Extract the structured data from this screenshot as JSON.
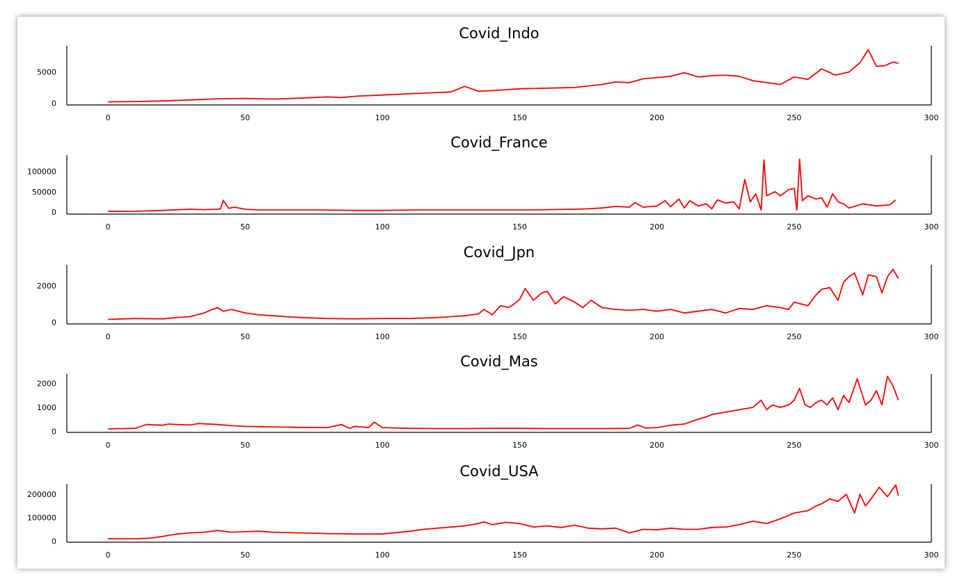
{
  "line_color": "#ff0000",
  "chart_data": [
    {
      "type": "line",
      "title": "Covid_Indo",
      "xlim": [
        -15,
        300
      ],
      "xticks": [
        0,
        50,
        100,
        150,
        200,
        250,
        300
      ],
      "ylim": [
        -300,
        9200
      ],
      "yticks": [
        0,
        5000
      ],
      "series": [
        {
          "x": [
            0,
            10,
            20,
            30,
            40,
            50,
            60,
            70,
            80,
            85,
            90,
            100,
            110,
            120,
            125,
            130,
            135,
            140,
            150,
            160,
            170,
            180,
            185,
            190,
            195,
            200,
            205,
            210,
            215,
            220,
            225,
            230,
            235,
            240,
            245,
            250,
            255,
            260,
            265,
            270,
            274,
            277,
            280,
            283,
            286,
            288
          ],
          "y": [
            200,
            250,
            350,
            500,
            700,
            750,
            650,
            800,
            1000,
            900,
            1100,
            1300,
            1500,
            1700,
            1800,
            2700,
            1900,
            2000,
            2300,
            2400,
            2500,
            3000,
            3400,
            3300,
            3900,
            4100,
            4300,
            4900,
            4200,
            4400,
            4500,
            4300,
            3600,
            3300,
            3000,
            4200,
            3800,
            5500,
            4500,
            5000,
            6500,
            8600,
            5900,
            6000,
            6600,
            6400
          ]
        }
      ]
    },
    {
      "type": "line",
      "title": "Covid_France",
      "xlim": [
        -15,
        300
      ],
      "xticks": [
        0,
        50,
        100,
        150,
        200,
        250,
        300
      ],
      "ylim": [
        -5000,
        140000
      ],
      "yticks": [
        0,
        50000,
        100000
      ],
      "series": [
        {
          "x": [
            0,
            10,
            20,
            30,
            35,
            40,
            41,
            42,
            44,
            46,
            50,
            55,
            60,
            70,
            80,
            90,
            100,
            110,
            120,
            130,
            140,
            150,
            160,
            170,
            175,
            180,
            185,
            190,
            192,
            195,
            200,
            203,
            205,
            208,
            210,
            212,
            215,
            218,
            220,
            222,
            225,
            228,
            230,
            232,
            234,
            236,
            238,
            239,
            240,
            243,
            245,
            248,
            250,
            251,
            252,
            253,
            255,
            258,
            260,
            262,
            264,
            266,
            268,
            270,
            275,
            280,
            285,
            287
          ],
          "y": [
            1500,
            2000,
            4000,
            7000,
            6000,
            7000,
            8000,
            29000,
            9000,
            12000,
            7000,
            5000,
            5000,
            5000,
            5000,
            4000,
            4000,
            5000,
            5000,
            5000,
            5000,
            5000,
            6000,
            7000,
            8000,
            10000,
            14000,
            12000,
            23000,
            12000,
            15000,
            28000,
            13000,
            32000,
            10000,
            28000,
            15000,
            20000,
            8000,
            30000,
            22000,
            25000,
            8000,
            80000,
            25000,
            45000,
            5000,
            128000,
            40000,
            50000,
            40000,
            55000,
            58000,
            5000,
            130000,
            28000,
            40000,
            32000,
            35000,
            12000,
            45000,
            25000,
            20000,
            10000,
            20000,
            15000,
            18000,
            30000
          ]
        }
      ]
    },
    {
      "type": "line",
      "title": "Covid_Jpn",
      "xlim": [
        -15,
        300
      ],
      "xticks": [
        0,
        50,
        100,
        150,
        200,
        250,
        300
      ],
      "ylim": [
        -100,
        3150
      ],
      "yticks": [
        0,
        2000
      ],
      "series": [
        {
          "x": [
            0,
            10,
            20,
            25,
            30,
            35,
            38,
            40,
            42,
            45,
            50,
            55,
            60,
            65,
            70,
            80,
            90,
            100,
            110,
            120,
            125,
            130,
            135,
            137,
            140,
            143,
            146,
            148,
            150,
            152,
            155,
            158,
            160,
            163,
            166,
            170,
            173,
            176,
            180,
            185,
            190,
            195,
            200,
            205,
            210,
            215,
            220,
            225,
            230,
            235,
            240,
            245,
            248,
            250,
            255,
            258,
            260,
            263,
            266,
            268,
            270,
            272,
            275,
            277,
            280,
            282,
            284,
            286,
            288
          ],
          "y": [
            150,
            200,
            180,
            250,
            300,
            500,
            700,
            800,
            600,
            700,
            500,
            400,
            350,
            300,
            250,
            200,
            180,
            200,
            200,
            250,
            300,
            350,
            450,
            700,
            400,
            900,
            800,
            1000,
            1250,
            1850,
            1200,
            1600,
            1700,
            1000,
            1400,
            1100,
            800,
            1200,
            800,
            700,
            650,
            700,
            600,
            700,
            500,
            600,
            700,
            500,
            750,
            700,
            900,
            800,
            700,
            1100,
            900,
            1500,
            1800,
            1900,
            1200,
            2200,
            2500,
            2700,
            1500,
            2600,
            2500,
            1600,
            2500,
            2900,
            2400
          ]
        }
      ]
    },
    {
      "type": "line",
      "title": "Covid_Mas",
      "xlim": [
        -15,
        300
      ],
      "xticks": [
        0,
        50,
        100,
        150,
        200,
        250,
        300
      ],
      "ylim": [
        -50,
        2400
      ],
      "yticks": [
        0,
        1000,
        2000
      ],
      "series": [
        {
          "x": [
            0,
            10,
            14,
            20,
            22,
            25,
            30,
            33,
            40,
            45,
            50,
            60,
            70,
            80,
            85,
            88,
            90,
            95,
            97,
            100,
            110,
            120,
            130,
            140,
            150,
            160,
            170,
            180,
            190,
            193,
            196,
            200,
            205,
            210,
            215,
            218,
            220,
            225,
            230,
            235,
            238,
            240,
            242,
            245,
            248,
            250,
            252,
            254,
            256,
            258,
            260,
            262,
            264,
            266,
            268,
            270,
            273,
            276,
            278,
            280,
            282,
            284,
            286,
            288
          ],
          "y": [
            100,
            120,
            280,
            250,
            300,
            280,
            260,
            320,
            280,
            230,
            200,
            180,
            160,
            150,
            280,
            120,
            200,
            150,
            380,
            150,
            120,
            110,
            110,
            120,
            120,
            110,
            110,
            110,
            120,
            260,
            130,
            150,
            250,
            300,
            500,
            600,
            700,
            800,
            900,
            1000,
            1300,
            900,
            1100,
            1000,
            1100,
            1300,
            1800,
            1100,
            1000,
            1200,
            1300,
            1100,
            1400,
            900,
            1500,
            1200,
            2200,
            1100,
            1300,
            1700,
            1100,
            2300,
            1900,
            1300
          ]
        }
      ]
    },
    {
      "type": "line",
      "title": "Covid_USA",
      "xlim": [
        -15,
        300
      ],
      "xticks": [
        0,
        50,
        100,
        150,
        200,
        250,
        300
      ],
      "ylim": [
        -5000,
        245000
      ],
      "yticks": [
        0,
        100000,
        200000
      ],
      "series": [
        {
          "x": [
            0,
            10,
            15,
            20,
            25,
            30,
            35,
            40,
            45,
            50,
            55,
            60,
            70,
            80,
            90,
            100,
            110,
            115,
            120,
            125,
            130,
            135,
            137,
            140,
            145,
            150,
            155,
            160,
            165,
            170,
            175,
            180,
            185,
            190,
            195,
            200,
            205,
            210,
            215,
            220,
            225,
            230,
            235,
            240,
            245,
            250,
            255,
            258,
            260,
            263,
            266,
            269,
            272,
            274,
            276,
            278,
            281,
            284,
            287,
            288
          ],
          "y": [
            10000,
            10000,
            12000,
            20000,
            30000,
            35000,
            38000,
            45000,
            38000,
            40000,
            42000,
            38000,
            35000,
            32000,
            30000,
            30000,
            42000,
            50000,
            55000,
            60000,
            65000,
            75000,
            82000,
            70000,
            80000,
            75000,
            60000,
            65000,
            58000,
            68000,
            55000,
            52000,
            55000,
            35000,
            50000,
            48000,
            55000,
            50000,
            50000,
            58000,
            60000,
            70000,
            85000,
            75000,
            95000,
            120000,
            130000,
            150000,
            160000,
            180000,
            170000,
            200000,
            120000,
            200000,
            150000,
            180000,
            230000,
            190000,
            240000,
            195000
          ]
        }
      ]
    }
  ]
}
